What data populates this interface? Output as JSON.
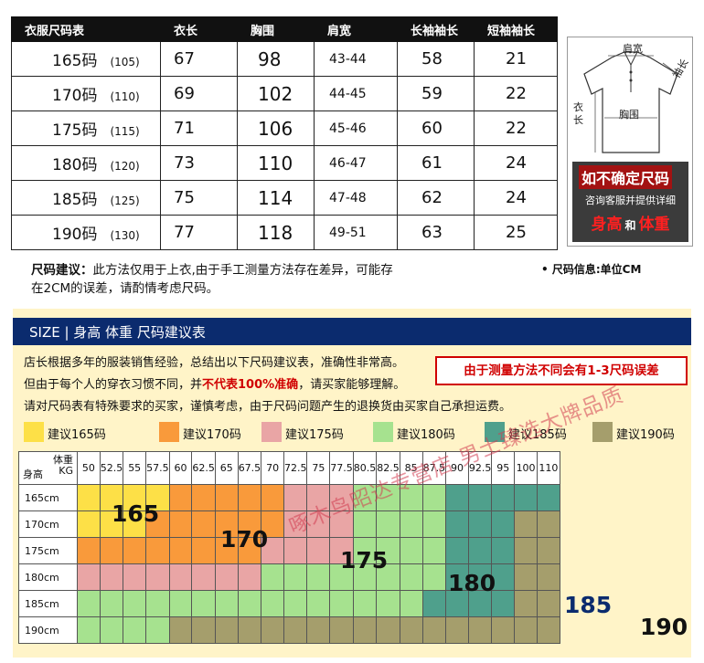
{
  "size_table": {
    "headers": [
      "衣服尺码表",
      "衣长",
      "胸围",
      "肩宽",
      "长袖袖长",
      "短袖袖长"
    ],
    "rows": [
      {
        "size": "165码",
        "sub": "(105)",
        "length": "67",
        "chest": "98",
        "shoulder": "43-44",
        "long_sleeve": "58",
        "short_sleeve": "21"
      },
      {
        "size": "170码",
        "sub": "(110)",
        "length": "69",
        "chest": "102",
        "shoulder": "44-45",
        "long_sleeve": "59",
        "short_sleeve": "22"
      },
      {
        "size": "175码",
        "sub": "(115)",
        "length": "71",
        "chest": "106",
        "shoulder": "45-46",
        "long_sleeve": "60",
        "short_sleeve": "22"
      },
      {
        "size": "180码",
        "sub": "(120)",
        "length": "73",
        "chest": "110",
        "shoulder": "46-47",
        "long_sleeve": "61",
        "short_sleeve": "24"
      },
      {
        "size": "185码",
        "sub": "(125)",
        "length": "75",
        "chest": "114",
        "shoulder": "47-48",
        "long_sleeve": "62",
        "short_sleeve": "24"
      },
      {
        "size": "190码",
        "sub": "(130)",
        "length": "77",
        "chest": "118",
        "shoulder": "49-51",
        "long_sleeve": "63",
        "short_sleeve": "25"
      }
    ]
  },
  "shirt_diagram": {
    "shoulder_label": "肩宽",
    "sleeve_label": "袖长",
    "length_label": "衣长",
    "chest_label": "胸围"
  },
  "promo": {
    "line1": "如不确定尺码",
    "line2": "咨询客服并提供详细",
    "height": "身高",
    "and": "和",
    "weight": "体重"
  },
  "advice": {
    "label": "尺码建议：",
    "text": "此方法仅用于上衣,由于手工测量方法存在差异，可能存在2CM的误差，请酌情考虑尺码。",
    "unit_note": "• 尺码信息:单位CM"
  },
  "banner": {
    "title": "SIZE | 身高 体重 尺码建议表",
    "note1": "店长根据多年的服装销售经验，总结出以下尺码建议表，准确性非常高。",
    "note2_pre": "但由于每个人的穿衣习惯不同，并",
    "note2_red": "不代表100%准确",
    "note2_post": "，请买家能够理解。",
    "note3": "请对尺码表有特殊要求的买家，谨慎考虑，由于尺码问题产生的退换货由买家自己承担运费。",
    "warning": "由于测量方法不同会有1-3尺码误差"
  },
  "legend": [
    {
      "label": "建议165码",
      "color": "#fde047"
    },
    {
      "label": "建议170码",
      "color": "#f99a3b"
    },
    {
      "label": "建议175码",
      "color": "#e9a5a5"
    },
    {
      "label": "建议180码",
      "color": "#a6e28f"
    },
    {
      "label": "建议185码",
      "color": "#4fa08c"
    },
    {
      "label": "建议190码",
      "color": "#a59e6c"
    }
  ],
  "grid": {
    "corner_weight": "体重",
    "corner_kg": "KG",
    "corner_height": "身高",
    "weights": [
      "50",
      "52.5",
      "55",
      "57.5",
      "60",
      "62.5",
      "65",
      "67.5",
      "70",
      "72.5",
      "75",
      "77.5",
      "80.5",
      "82.5",
      "85",
      "87.5",
      "90",
      "92.5",
      "95",
      "100",
      "110"
    ],
    "heights": [
      "165cm",
      "170cm",
      "175cm",
      "180cm",
      "185cm",
      "190cm"
    ],
    "rows": [
      [
        0,
        0,
        0,
        0,
        1,
        1,
        1,
        1,
        1,
        2,
        2,
        2,
        3,
        3,
        3,
        3,
        4,
        4,
        4,
        4,
        4
      ],
      [
        0,
        0,
        0,
        1,
        1,
        1,
        1,
        1,
        1,
        2,
        2,
        2,
        3,
        3,
        3,
        3,
        4,
        4,
        4,
        5,
        5
      ],
      [
        1,
        1,
        1,
        1,
        1,
        1,
        1,
        1,
        2,
        2,
        2,
        2,
        3,
        3,
        3,
        3,
        4,
        4,
        4,
        5,
        5
      ],
      [
        2,
        2,
        2,
        2,
        2,
        2,
        2,
        2,
        3,
        3,
        3,
        3,
        3,
        3,
        3,
        3,
        4,
        4,
        4,
        5,
        5
      ],
      [
        3,
        3,
        3,
        3,
        3,
        3,
        3,
        3,
        3,
        3,
        3,
        3,
        3,
        3,
        3,
        4,
        4,
        4,
        4,
        5,
        5
      ],
      [
        3,
        3,
        3,
        3,
        5,
        5,
        5,
        5,
        5,
        5,
        5,
        5,
        5,
        5,
        5,
        5,
        5,
        5,
        5,
        5,
        5
      ]
    ],
    "big_labels": [
      "165",
      "170",
      "175",
      "180",
      "185",
      "190"
    ]
  },
  "watermark": "啄木鸟昭达专营店 男士臻选大牌品质"
}
